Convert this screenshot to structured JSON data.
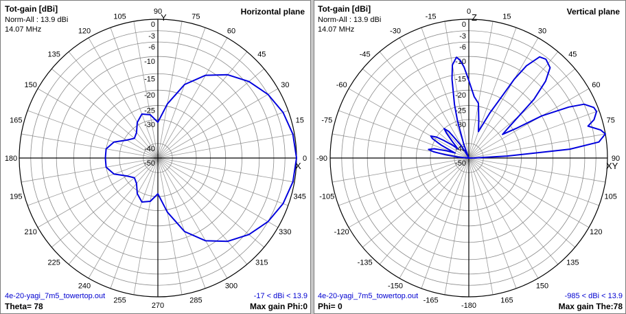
{
  "panels": [
    {
      "title": "Tot-gain [dBi]",
      "norm": "Norm-All : 13.9 dBi",
      "freq": "14.07 MHz",
      "plane": "Horizontal plane",
      "file": "4e-20-yagi_7m5_towertop.out",
      "range": "-17 < dBi < 13.9",
      "bottom_left": "Theta= 78",
      "bottom_right": "Max gain Phi:0"
    },
    {
      "title": "Tot-gain [dBi]",
      "norm": "Norm-All : 13.9 dBi",
      "freq": "14.07 MHz",
      "plane": "Vertical plane",
      "file": "4e-20-yagi_7m5_towertop.out",
      "range": "-985 < dBi < 13.9",
      "bottom_left": "Phi= 0",
      "bottom_right": "Max gain The:78"
    }
  ],
  "chart_data": [
    {
      "type": "polar",
      "title": "Horizontal plane",
      "axis_letters": [
        "Y",
        "X"
      ],
      "angle_labels": [
        "0",
        "15",
        "30",
        "45",
        "60",
        "75",
        "90",
        "105",
        "120",
        "135",
        "150",
        "165",
        "180",
        "195",
        "210",
        "225",
        "240",
        "255",
        "270",
        "285",
        "300",
        "315",
        "330",
        "345"
      ],
      "radial_labels": [
        "0",
        "-3",
        "-6",
        "-10",
        "-15",
        "-20",
        "-25",
        "-30",
        "-40",
        "-50"
      ],
      "radial_db": [
        0,
        -3,
        -6,
        -10,
        -15,
        -20,
        -25,
        -30,
        -40,
        -50
      ],
      "pattern_color": "#0000dd",
      "series": [
        {
          "angle_deg": [
            0,
            10,
            20,
            30,
            40,
            50,
            60,
            70,
            80,
            90,
            100,
            110,
            120,
            130,
            140,
            150,
            160,
            170,
            180,
            190,
            200,
            210,
            220,
            230,
            240,
            250,
            260,
            270,
            280,
            290,
            300,
            310,
            320,
            330,
            340,
            350
          ],
          "gain_db": [
            0,
            -0.4,
            -1.4,
            -3,
            -5.2,
            -8,
            -11.7,
            -16.8,
            -24.2,
            -31,
            -28,
            -27,
            -29,
            -32,
            -33,
            -31,
            -27,
            -25,
            -25,
            -25,
            -27,
            -31,
            -33,
            -32,
            -29,
            -27,
            -28,
            -31,
            -24.2,
            -16.8,
            -11.7,
            -8,
            -5.2,
            -3,
            -1.4,
            -0.4
          ]
        }
      ]
    },
    {
      "type": "polar",
      "title": "Vertical plane",
      "axis_letters": [
        "Z",
        "XY"
      ],
      "angle_labels": [
        "0",
        "15",
        "30",
        "45",
        "60",
        "75",
        "90",
        "105",
        "120",
        "135",
        "150",
        "165",
        "-180",
        "-165",
        "-150",
        "-135",
        "-120",
        "-105",
        "-90",
        "-75",
        "-60",
        "-45",
        "-30",
        "-15"
      ],
      "radial_labels": [
        "0",
        "-3",
        "-6",
        "-10",
        "-15",
        "-20",
        "-25",
        "-30",
        "-40",
        "-50"
      ],
      "radial_db": [
        0,
        -3,
        -6,
        -10,
        -15,
        -20,
        -25,
        -30,
        -40,
        -50
      ],
      "pattern_color": "#0000dd",
      "series": [
        {
          "angle_deg": [
            -90,
            -88,
            -85,
            -82,
            -80,
            -78,
            -75,
            -72,
            -70,
            -68,
            -65,
            -62,
            -60,
            -57,
            -55,
            -52,
            -50,
            -48,
            -45,
            -42,
            -40,
            -37,
            -35,
            -32,
            -30,
            -28,
            -25,
            -22,
            -20,
            -17,
            -15,
            -12,
            -10,
            -7,
            -5,
            -3,
            0,
            5,
            10,
            15,
            20,
            25,
            28,
            30,
            32,
            35,
            38,
            42,
            45,
            48,
            52,
            55,
            58,
            60,
            63,
            65,
            68,
            70,
            73,
            75,
            78,
            80,
            83,
            85,
            87,
            89,
            90
          ],
          "gain_db": [
            -52,
            -48,
            -42,
            -36,
            -31,
            -29,
            -31,
            -36,
            -40,
            -38,
            -33,
            -29,
            -28,
            -30,
            -33,
            -37,
            -40,
            -39,
            -36,
            -32,
            -30,
            -32,
            -36,
            -40,
            -44,
            -48,
            -50,
            -46,
            -40,
            -30,
            -24,
            -16,
            -12,
            -10,
            -11,
            -13,
            -17,
            -22,
            -24,
            -30,
            -34,
            -26,
            -20,
            -13,
            -8,
            -4,
            -3.5,
            -4.5,
            -8,
            -14,
            -25,
            -29,
            -24,
            -15,
            -7,
            -3,
            -1,
            -0.7,
            -2,
            -4,
            -1,
            0,
            -2,
            -10,
            -30,
            -45,
            -52
          ]
        }
      ]
    }
  ]
}
